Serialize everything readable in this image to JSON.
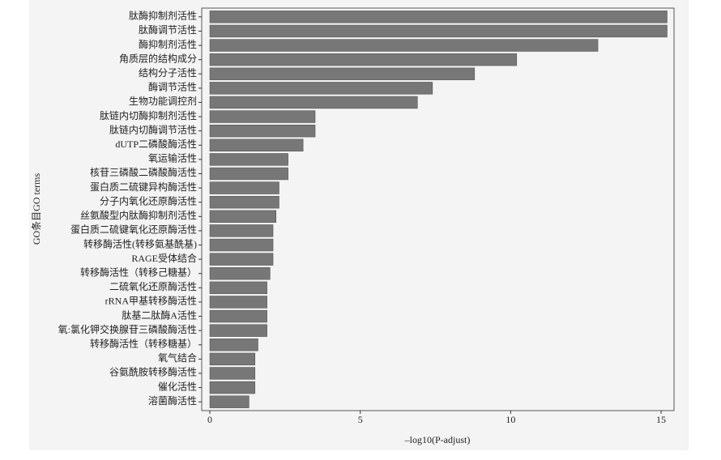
{
  "chart_data": {
    "type": "barh",
    "x_label": "–log10(P-adjust)",
    "y_label": "GO条目GO terms",
    "categories": [
      "肽酶抑制剂活性",
      "肽酶调节活性",
      "酶抑制剂活性",
      "角质层的结构成分",
      "结构分子活性",
      "酶调节活性",
      "生物功能调控剂",
      "肽链内切酶抑制剂活性",
      "肽链内切酶调节活性",
      "dUTP二磷酸酶活性",
      "氧运输活性",
      "核苷三磷酸二磷酸酶活性",
      "蛋白质二硫键异构酶活性",
      "分子内氧化还原酶活性",
      "丝氨酸型内肽酶抑制剂活性",
      "蛋白质二硫键氧化还原酶活性",
      "转移酶活性(转移氨基酰基)",
      "RAGE受体结合",
      "转移酶活性（转移己糖基）",
      "二硫氧化还原酶活性",
      "rRNA甲基转移酶活性",
      "肽基二肽酶A活性",
      "氧:氯化钾交换腺苷三磷酸酶活性",
      "转移酶活性（转移糖基）",
      "氧气结合",
      "谷氨酰胺转移酶活性",
      "催化活性",
      "溶菌酶活性"
    ],
    "values": [
      15.2,
      15.2,
      12.9,
      10.2,
      8.8,
      7.4,
      6.9,
      3.5,
      3.5,
      3.1,
      2.6,
      2.6,
      2.3,
      2.3,
      2.2,
      2.1,
      2.1,
      2.1,
      2.0,
      1.9,
      1.9,
      1.9,
      1.9,
      1.6,
      1.5,
      1.5,
      1.5,
      1.3
    ],
    "color": "#777777",
    "xlim": [
      -0.27,
      15.43
    ],
    "xticks": [
      0,
      5,
      10,
      15
    ]
  }
}
